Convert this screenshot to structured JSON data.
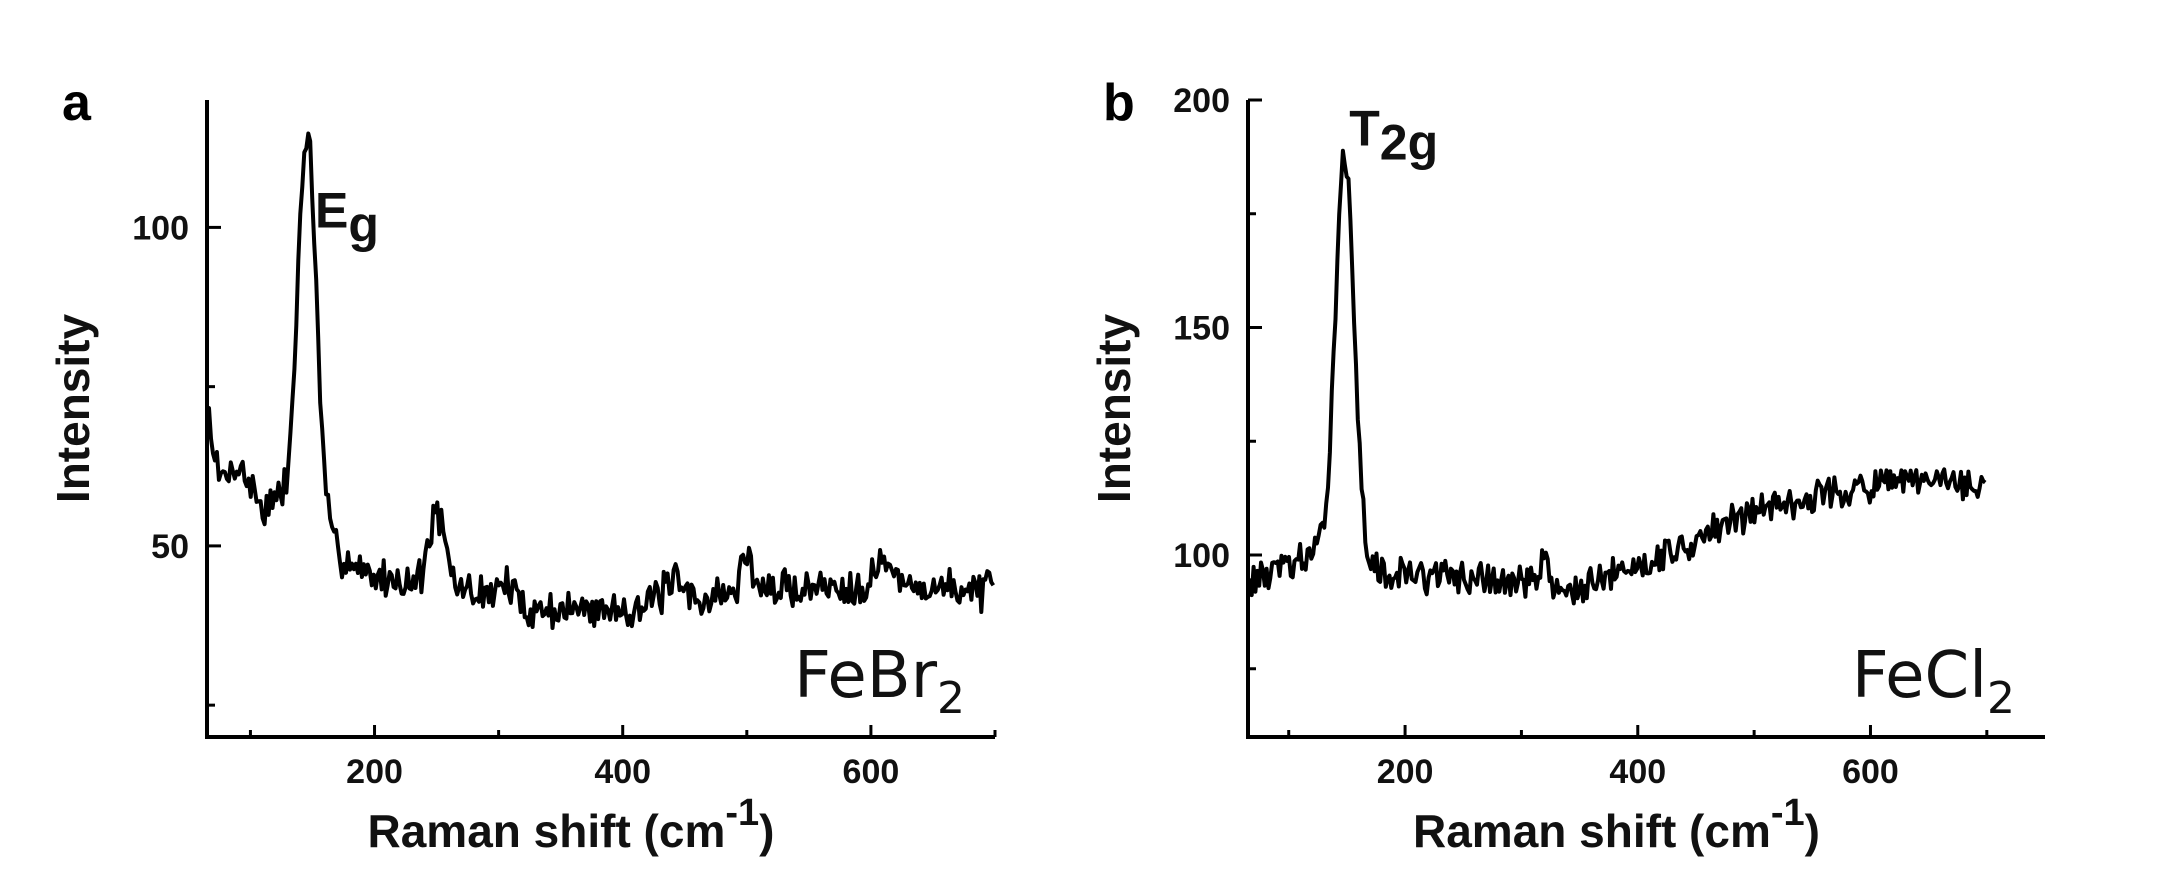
{
  "chart_data": [
    {
      "type": "line",
      "panel_label": "a",
      "xlabel": "Raman shift (cm",
      "xlabel_sup": "-1",
      "xlabel_close": ")",
      "ylabel": "Intensity",
      "xlim": [
        65,
        700
      ],
      "ylim": [
        20,
        120
      ],
      "xticks": [
        200,
        400,
        600
      ],
      "yticks": [
        50,
        100
      ],
      "peak_label": {
        "main": "E",
        "sub": "g",
        "x": 152,
        "y": 100
      },
      "sample_label": {
        "main": "FeBr",
        "sub": "2"
      },
      "series": [
        {
          "peaks": [
            [
              146,
              56,
              7
            ],
            [
              250,
              11,
              6
            ],
            [
              305,
              3,
              8
            ],
            [
              440,
              3,
              8
            ],
            [
              500,
              6,
              4
            ],
            [
              610,
              4,
              6
            ]
          ],
          "anchors": [
            [
              65,
              72
            ],
            [
              75,
              60
            ],
            [
              90,
              63
            ],
            [
              110,
              56
            ],
            [
              130,
              58
            ],
            [
              138,
              62
            ],
            [
              170,
              49
            ],
            [
              200,
              45
            ],
            [
              260,
              44
            ],
            [
              320,
              40
            ],
            [
              380,
              40
            ],
            [
              440,
              41
            ],
            [
              500,
              43
            ],
            [
              600,
              44
            ],
            [
              700,
              43
            ]
          ],
          "noise": 2.4,
          "seed": 7
        }
      ]
    },
    {
      "type": "line",
      "panel_label": "b",
      "xlabel": "Raman shift (cm",
      "xlabel_sup": "-1",
      "xlabel_close": ")",
      "ylabel": "Intensity",
      "xlim": [
        65,
        750
      ],
      "ylim": [
        60,
        200
      ],
      "xticks": [
        200,
        400,
        600
      ],
      "yticks": [
        100,
        150,
        200
      ],
      "peak_label": {
        "main": "T",
        "sub": "2g",
        "x": 152,
        "y": 190
      },
      "sample_label": {
        "main": "FeCl",
        "sub": "2"
      },
      "series": [
        {
          "peaks": [
            [
              148,
              90,
              8
            ],
            [
              318,
              6,
              4
            ]
          ],
          "anchors": [
            [
              65,
              94
            ],
            [
              100,
              98
            ],
            [
              130,
              100
            ],
            [
              180,
              96
            ],
            [
              250,
              95
            ],
            [
              300,
              94
            ],
            [
              350,
              92
            ],
            [
              400,
              98
            ],
            [
              450,
              103
            ],
            [
              500,
              110
            ],
            [
              550,
              113
            ],
            [
              600,
              115
            ],
            [
              650,
              116
            ],
            [
              700,
              115
            ]
          ],
          "noise": 3.0,
          "seed": 13
        }
      ]
    }
  ]
}
